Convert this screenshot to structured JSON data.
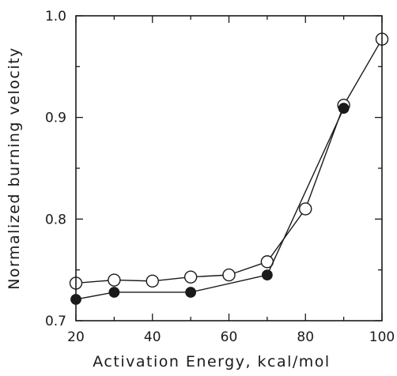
{
  "chart_data": {
    "type": "line",
    "title": "",
    "xlabel": "Activation Energy, kcal/mol",
    "ylabel": "Normalized burning velocity",
    "xlim": [
      20,
      100
    ],
    "ylim": [
      0.7,
      1.0
    ],
    "x_ticks": [
      20,
      40,
      60,
      80,
      100
    ],
    "y_ticks": [
      0.7,
      0.8,
      0.9,
      1.0
    ],
    "x_tick_labels": [
      "20",
      "40",
      "60",
      "80",
      "100"
    ],
    "y_tick_labels": [
      "0.7",
      "0.8",
      "0.9",
      "1.0"
    ],
    "grid": false,
    "legend": "none",
    "series": [
      {
        "marker": "open-circle",
        "x": [
          20,
          30,
          40,
          50,
          60,
          70,
          80,
          90,
          100
        ],
        "y": [
          0.737,
          0.74,
          0.739,
          0.743,
          0.745,
          0.758,
          0.81,
          0.912,
          0.977
        ]
      },
      {
        "marker": "filled-circle",
        "x": [
          20,
          30,
          50,
          70,
          90
        ],
        "y": [
          0.721,
          0.728,
          0.728,
          0.745,
          0.909
        ]
      }
    ],
    "colors": {
      "ink": "#1a1a1a"
    }
  }
}
